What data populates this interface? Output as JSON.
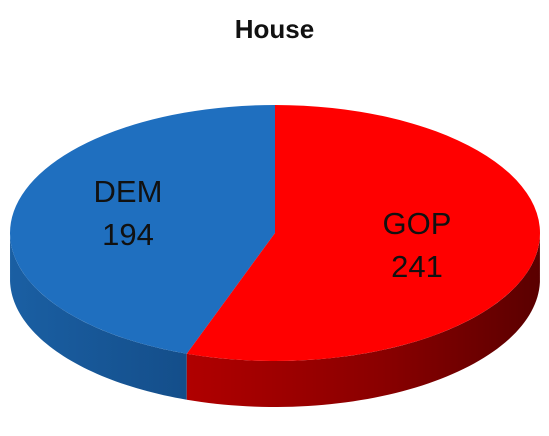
{
  "chart_data": {
    "type": "pie",
    "title": "House",
    "style": "3d",
    "slices": [
      {
        "label": "DEM",
        "value": 194,
        "color": "#1f6fbf",
        "side_color": "#165a9e"
      },
      {
        "label": "GOP",
        "value": 241,
        "color": "#ff0000",
        "side_color": "#a30000"
      }
    ]
  }
}
